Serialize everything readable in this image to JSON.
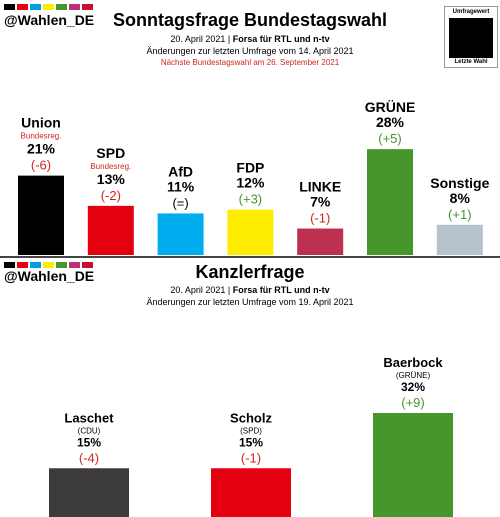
{
  "handle": "@Wahlen_DE",
  "flag_colors": [
    "#000000",
    "#e3000f",
    "#009ee0",
    "#ffed00",
    "#46962b",
    "#be3075",
    "#c8102e"
  ],
  "colors": {
    "change_pos": "#46962b",
    "change_neg": "#d0271d",
    "change_neutral": "#000000"
  },
  "legend": {
    "top": "Umfragewert",
    "bottom": "Letzte Wahl"
  },
  "panel1": {
    "title": "Sonntagsfrage Bundestagswahl",
    "date_line": "20. April 2021",
    "source": "Forsa für RTL und n-tv",
    "change_note": "Änderungen zur letzten Umfrage vom 14. April 2021",
    "next_election": "Nächste Bundestagswahl am 26. September 2021"
  },
  "panel2": {
    "title": "Kanzlerfrage",
    "date_line": "20. April 2021",
    "source": "Forsa für RTL und n-tv",
    "change_note": "Änderungen zur letzten Umfrage vom 19. April 2021"
  },
  "chart_data": [
    {
      "type": "bar",
      "title": "Sonntagsfrage Bundestagswahl",
      "unit": "%",
      "categories": [
        "Union",
        "SPD",
        "AfD",
        "FDP",
        "LINKE",
        "GRÜNE",
        "Sonstige"
      ],
      "notes": [
        "Bundesreg.",
        "Bundesreg.",
        "",
        "",
        "",
        "",
        ""
      ],
      "values": [
        21,
        13,
        11,
        12,
        7,
        28,
        8
      ],
      "value_labels": [
        "21%",
        "13%",
        "11%",
        "12%",
        "7%",
        "28%",
        "8%"
      ],
      "changes": [
        "(-6)",
        "(-2)",
        "(=)",
        "(+3)",
        "(-1)",
        "(+5)",
        "(+1)"
      ],
      "change_signs": [
        -1,
        -1,
        0,
        1,
        -1,
        1,
        1
      ],
      "colors": [
        "#000000",
        "#e3000f",
        "#00aeef",
        "#ffed00",
        "#be3050",
        "#46962b",
        "#b8c2cc"
      ]
    },
    {
      "type": "bar",
      "title": "Kanzlerfrage",
      "unit": "%",
      "categories": [
        "Laschet",
        "Scholz",
        "Baerbock"
      ],
      "notes": [
        "(CDU)",
        "(SPD)",
        "(GRÜNE)"
      ],
      "values": [
        15,
        15,
        32
      ],
      "value_labels": [
        "15%",
        "15%",
        "32%"
      ],
      "changes": [
        "(-4)",
        "(-1)",
        "(+9)"
      ],
      "change_signs": [
        -1,
        -1,
        1
      ],
      "colors": [
        "#3d3a3a",
        "#e3000f",
        "#46962b"
      ]
    }
  ]
}
